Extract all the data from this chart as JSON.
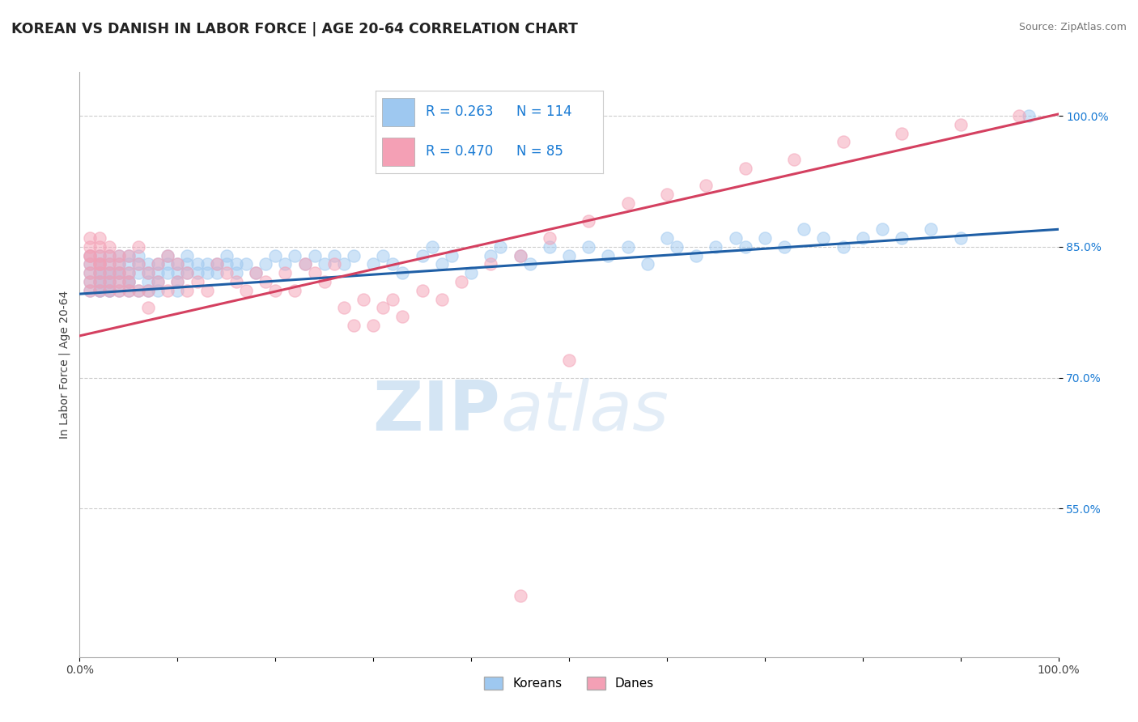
{
  "title": "KOREAN VS DANISH IN LABOR FORCE | AGE 20-64 CORRELATION CHART",
  "source": "Source: ZipAtlas.com",
  "ylabel": "In Labor Force | Age 20-64",
  "xlim": [
    0.0,
    1.0
  ],
  "ylim": [
    0.38,
    1.05
  ],
  "ytick_positions": [
    0.55,
    0.7,
    0.85,
    1.0
  ],
  "yticklabels": [
    "55.0%",
    "70.0%",
    "85.0%",
    "100.0%"
  ],
  "legend_blue_R": "0.263",
  "legend_blue_N": "114",
  "legend_pink_R": "0.470",
  "legend_pink_N": "85",
  "blue_color": "#9ec8f0",
  "pink_color": "#f4a0b5",
  "blue_line_color": "#1f5fa6",
  "pink_line_color": "#d44060",
  "watermark_zip": "ZIP",
  "watermark_atlas": "atlas",
  "background_color": "#ffffff",
  "grid_color": "#cccccc",
  "title_fontsize": 12.5,
  "axis_label_fontsize": 10,
  "tick_fontsize": 10,
  "dot_size": 120,
  "dot_alpha": 0.5,
  "line_width": 2.2,
  "blue_line_start_y": 0.796,
  "blue_line_end_y": 0.87,
  "pink_line_start_y": 0.748,
  "pink_line_end_y": 1.002,
  "blue_scatter_x": [
    0.01,
    0.01,
    0.01,
    0.01,
    0.01,
    0.02,
    0.02,
    0.02,
    0.02,
    0.02,
    0.02,
    0.02,
    0.02,
    0.02,
    0.03,
    0.03,
    0.03,
    0.03,
    0.03,
    0.03,
    0.03,
    0.03,
    0.04,
    0.04,
    0.04,
    0.04,
    0.04,
    0.04,
    0.05,
    0.05,
    0.05,
    0.05,
    0.05,
    0.05,
    0.06,
    0.06,
    0.06,
    0.06,
    0.07,
    0.07,
    0.07,
    0.07,
    0.08,
    0.08,
    0.08,
    0.08,
    0.09,
    0.09,
    0.09,
    0.1,
    0.1,
    0.1,
    0.1,
    0.11,
    0.11,
    0.11,
    0.12,
    0.12,
    0.13,
    0.13,
    0.14,
    0.14,
    0.15,
    0.15,
    0.16,
    0.16,
    0.17,
    0.18,
    0.19,
    0.2,
    0.21,
    0.22,
    0.23,
    0.24,
    0.25,
    0.26,
    0.27,
    0.28,
    0.3,
    0.31,
    0.32,
    0.33,
    0.35,
    0.36,
    0.37,
    0.38,
    0.4,
    0.42,
    0.43,
    0.45,
    0.46,
    0.48,
    0.5,
    0.52,
    0.54,
    0.56,
    0.58,
    0.6,
    0.61,
    0.63,
    0.65,
    0.67,
    0.68,
    0.7,
    0.72,
    0.74,
    0.76,
    0.78,
    0.8,
    0.82,
    0.84,
    0.87,
    0.9,
    0.97
  ],
  "blue_scatter_y": [
    0.82,
    0.8,
    0.84,
    0.83,
    0.81,
    0.81,
    0.83,
    0.82,
    0.8,
    0.84,
    0.82,
    0.81,
    0.83,
    0.8,
    0.8,
    0.82,
    0.81,
    0.83,
    0.84,
    0.82,
    0.8,
    0.81,
    0.82,
    0.83,
    0.81,
    0.8,
    0.84,
    0.82,
    0.81,
    0.83,
    0.82,
    0.8,
    0.84,
    0.81,
    0.83,
    0.82,
    0.8,
    0.84,
    0.82,
    0.83,
    0.81,
    0.8,
    0.83,
    0.82,
    0.81,
    0.8,
    0.83,
    0.82,
    0.84,
    0.82,
    0.83,
    0.81,
    0.8,
    0.83,
    0.82,
    0.84,
    0.83,
    0.82,
    0.83,
    0.82,
    0.83,
    0.82,
    0.83,
    0.84,
    0.83,
    0.82,
    0.83,
    0.82,
    0.83,
    0.84,
    0.83,
    0.84,
    0.83,
    0.84,
    0.83,
    0.84,
    0.83,
    0.84,
    0.83,
    0.84,
    0.83,
    0.82,
    0.84,
    0.85,
    0.83,
    0.84,
    0.82,
    0.84,
    0.85,
    0.84,
    0.83,
    0.85,
    0.84,
    0.85,
    0.84,
    0.85,
    0.83,
    0.86,
    0.85,
    0.84,
    0.85,
    0.86,
    0.85,
    0.86,
    0.85,
    0.87,
    0.86,
    0.85,
    0.86,
    0.87,
    0.86,
    0.87,
    0.86,
    1.0
  ],
  "pink_scatter_x": [
    0.01,
    0.01,
    0.01,
    0.01,
    0.01,
    0.01,
    0.01,
    0.01,
    0.02,
    0.02,
    0.02,
    0.02,
    0.02,
    0.02,
    0.02,
    0.02,
    0.03,
    0.03,
    0.03,
    0.03,
    0.03,
    0.03,
    0.04,
    0.04,
    0.04,
    0.04,
    0.04,
    0.05,
    0.05,
    0.05,
    0.05,
    0.06,
    0.06,
    0.06,
    0.07,
    0.07,
    0.07,
    0.08,
    0.08,
    0.09,
    0.09,
    0.1,
    0.1,
    0.11,
    0.11,
    0.12,
    0.13,
    0.14,
    0.15,
    0.16,
    0.17,
    0.18,
    0.19,
    0.2,
    0.21,
    0.22,
    0.23,
    0.24,
    0.25,
    0.26,
    0.27,
    0.28,
    0.29,
    0.3,
    0.31,
    0.32,
    0.33,
    0.35,
    0.37,
    0.39,
    0.42,
    0.45,
    0.48,
    0.52,
    0.56,
    0.6,
    0.64,
    0.68,
    0.73,
    0.78,
    0.84,
    0.9,
    0.96,
    0.5,
    0.45
  ],
  "pink_scatter_y": [
    0.82,
    0.84,
    0.83,
    0.85,
    0.81,
    0.8,
    0.86,
    0.84,
    0.83,
    0.85,
    0.82,
    0.84,
    0.8,
    0.81,
    0.86,
    0.83,
    0.8,
    0.82,
    0.81,
    0.83,
    0.85,
    0.84,
    0.83,
    0.8,
    0.82,
    0.84,
    0.81,
    0.82,
    0.8,
    0.84,
    0.81,
    0.8,
    0.83,
    0.85,
    0.78,
    0.82,
    0.8,
    0.83,
    0.81,
    0.84,
    0.8,
    0.83,
    0.81,
    0.8,
    0.82,
    0.81,
    0.8,
    0.83,
    0.82,
    0.81,
    0.8,
    0.82,
    0.81,
    0.8,
    0.82,
    0.8,
    0.83,
    0.82,
    0.81,
    0.83,
    0.78,
    0.76,
    0.79,
    0.76,
    0.78,
    0.79,
    0.77,
    0.8,
    0.79,
    0.81,
    0.83,
    0.84,
    0.86,
    0.88,
    0.9,
    0.91,
    0.92,
    0.94,
    0.95,
    0.97,
    0.98,
    0.99,
    1.0,
    0.72,
    0.45
  ]
}
